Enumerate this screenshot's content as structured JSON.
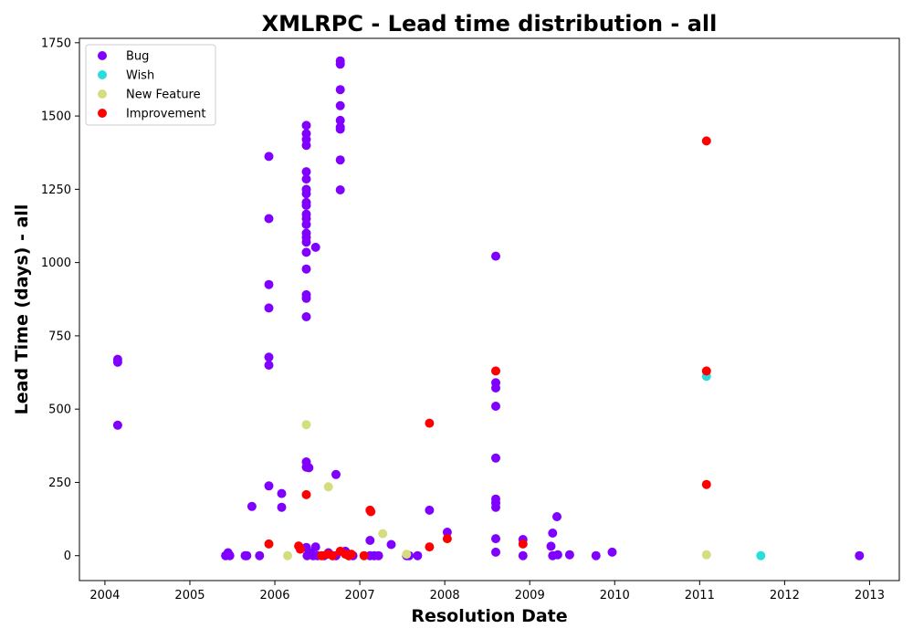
{
  "chart_data": {
    "type": "scatter",
    "title": "XMLRPC - Lead time distribution - all",
    "xlabel": "Resolution Date",
    "ylabel": "Lead Time (days) - all",
    "xlim": [
      2003.7,
      2013.35
    ],
    "ylim": [
      -85,
      1765
    ],
    "x_ticks": [
      2004,
      2005,
      2006,
      2007,
      2008,
      2009,
      2010,
      2011,
      2012,
      2013
    ],
    "y_ticks": [
      0,
      250,
      500,
      750,
      1000,
      1250,
      1500,
      1750
    ],
    "grid": false,
    "legend_position": "top-left",
    "series": [
      {
        "name": "Bug",
        "color": "#8000ff",
        "points": [
          [
            2004.15,
            670
          ],
          [
            2004.15,
            660
          ],
          [
            2004.15,
            445
          ],
          [
            2005.42,
            0
          ],
          [
            2005.45,
            10
          ],
          [
            2005.47,
            0
          ],
          [
            2005.65,
            0
          ],
          [
            2005.67,
            0
          ],
          [
            2005.73,
            168
          ],
          [
            2005.82,
            0
          ],
          [
            2005.93,
            1362
          ],
          [
            2005.93,
            1150
          ],
          [
            2005.93,
            925
          ],
          [
            2005.93,
            845
          ],
          [
            2005.93,
            677
          ],
          [
            2005.93,
            650
          ],
          [
            2005.93,
            238
          ],
          [
            2006.08,
            212
          ],
          [
            2006.08,
            165
          ],
          [
            2006.37,
            1468
          ],
          [
            2006.37,
            1440
          ],
          [
            2006.37,
            1420
          ],
          [
            2006.37,
            1400
          ],
          [
            2006.37,
            1310
          ],
          [
            2006.37,
            1285
          ],
          [
            2006.37,
            1250
          ],
          [
            2006.37,
            1235
          ],
          [
            2006.37,
            1205
          ],
          [
            2006.37,
            1195
          ],
          [
            2006.37,
            1165
          ],
          [
            2006.37,
            1150
          ],
          [
            2006.37,
            1130
          ],
          [
            2006.37,
            1100
          ],
          [
            2006.37,
            1085
          ],
          [
            2006.37,
            1070
          ],
          [
            2006.37,
            1035
          ],
          [
            2006.37,
            978
          ],
          [
            2006.37,
            890
          ],
          [
            2006.37,
            878
          ],
          [
            2006.37,
            815
          ],
          [
            2006.37,
            320
          ],
          [
            2006.37,
            302
          ],
          [
            2006.4,
            300
          ],
          [
            2006.37,
            28
          ],
          [
            2006.38,
            0
          ],
          [
            2006.42,
            10
          ],
          [
            2006.45,
            0
          ],
          [
            2006.48,
            1052
          ],
          [
            2006.48,
            30
          ],
          [
            2006.5,
            0
          ],
          [
            2006.58,
            0
          ],
          [
            2006.63,
            10
          ],
          [
            2006.68,
            0
          ],
          [
            2006.72,
            277
          ],
          [
            2006.72,
            0
          ],
          [
            2006.77,
            1688
          ],
          [
            2006.77,
            1677
          ],
          [
            2006.77,
            1590
          ],
          [
            2006.77,
            1535
          ],
          [
            2006.77,
            1485
          ],
          [
            2006.77,
            1462
          ],
          [
            2006.77,
            1455
          ],
          [
            2006.77,
            1350
          ],
          [
            2006.77,
            1248
          ],
          [
            2006.83,
            15
          ],
          [
            2006.87,
            0
          ],
          [
            2006.92,
            0
          ],
          [
            2007.12,
            52
          ],
          [
            2007.12,
            0
          ],
          [
            2007.17,
            0
          ],
          [
            2007.22,
            0
          ],
          [
            2007.37,
            38
          ],
          [
            2007.55,
            0
          ],
          [
            2007.58,
            0
          ],
          [
            2007.68,
            0
          ],
          [
            2007.82,
            155
          ],
          [
            2008.03,
            80
          ],
          [
            2008.6,
            1022
          ],
          [
            2008.6,
            590
          ],
          [
            2008.6,
            572
          ],
          [
            2008.6,
            510
          ],
          [
            2008.6,
            333
          ],
          [
            2008.6,
            193
          ],
          [
            2008.6,
            180
          ],
          [
            2008.6,
            165
          ],
          [
            2008.6,
            58
          ],
          [
            2008.6,
            12
          ],
          [
            2008.92,
            55
          ],
          [
            2008.92,
            0
          ],
          [
            2009.25,
            32
          ],
          [
            2009.27,
            77
          ],
          [
            2009.27,
            0
          ],
          [
            2009.32,
            133
          ],
          [
            2009.33,
            3
          ],
          [
            2009.47,
            3
          ],
          [
            2009.78,
            0
          ],
          [
            2009.97,
            12
          ],
          [
            2012.88,
            0
          ]
        ]
      },
      {
        "name": "Wish",
        "color": "#2adddd",
        "points": [
          [
            2011.08,
            612
          ],
          [
            2011.72,
            0
          ]
        ]
      },
      {
        "name": "New Feature",
        "color": "#d4dd80",
        "points": [
          [
            2006.15,
            0
          ],
          [
            2006.37,
            447
          ],
          [
            2006.63,
            235
          ],
          [
            2007.27,
            75
          ],
          [
            2007.55,
            5
          ],
          [
            2011.08,
            3
          ]
        ]
      },
      {
        "name": "Improvement",
        "color": "#ff0000",
        "points": [
          [
            2005.93,
            40
          ],
          [
            2006.28,
            33
          ],
          [
            2006.3,
            22
          ],
          [
            2006.37,
            208
          ],
          [
            2006.55,
            0
          ],
          [
            2006.62,
            5
          ],
          [
            2006.68,
            0
          ],
          [
            2006.77,
            15
          ],
          [
            2006.83,
            5
          ],
          [
            2006.87,
            0
          ],
          [
            2006.9,
            5
          ],
          [
            2007.05,
            0
          ],
          [
            2007.12,
            155
          ],
          [
            2007.13,
            150
          ],
          [
            2007.82,
            452
          ],
          [
            2007.82,
            30
          ],
          [
            2008.03,
            58
          ],
          [
            2008.6,
            630
          ],
          [
            2008.92,
            40
          ],
          [
            2011.08,
            1415
          ],
          [
            2011.08,
            630
          ],
          [
            2011.08,
            243
          ]
        ]
      }
    ]
  }
}
